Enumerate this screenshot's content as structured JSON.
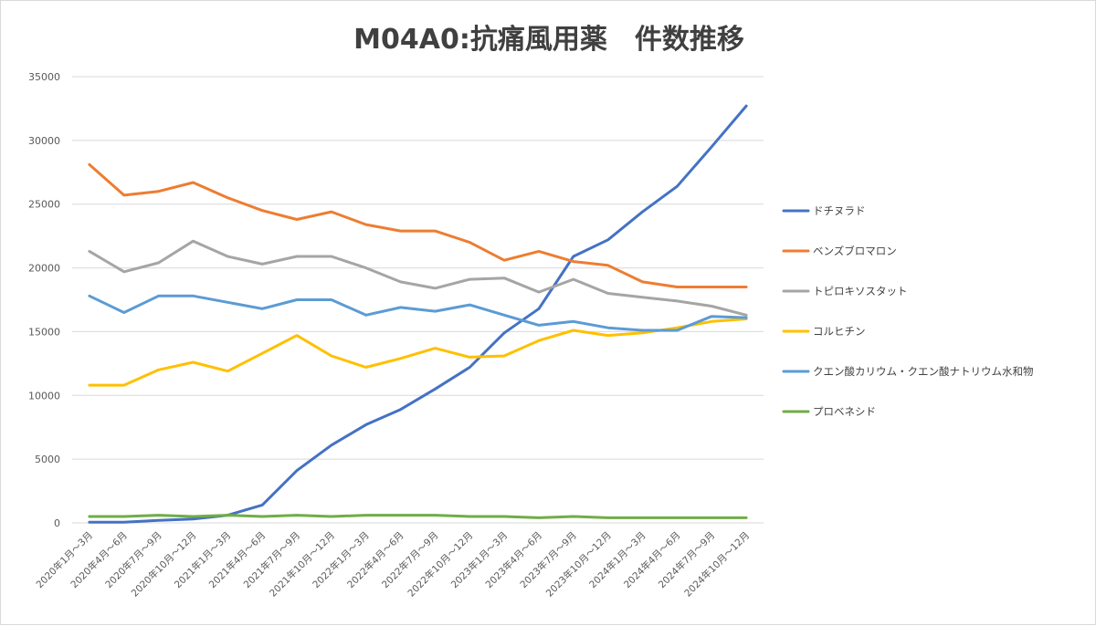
{
  "chart_data": {
    "type": "line",
    "title": "M04A0:抗痛風用薬　件数推移",
    "xlabel": "",
    "ylabel": "",
    "ylim": [
      0,
      35000
    ],
    "yticks": [
      0,
      5000,
      10000,
      15000,
      20000,
      25000,
      30000,
      35000
    ],
    "grid": true,
    "legend_position": "right",
    "categories": [
      "2020年1月～3月",
      "2020年4月～6月",
      "2020年7月～9月",
      "2020年10月～12月",
      "2021年1月～3月",
      "2021年4月～6月",
      "2021年7月～9月",
      "2021年10月～12月",
      "2022年1月～3月",
      "2022年4月～6月",
      "2022年7月～9月",
      "2022年10月～12月",
      "2023年1月～3月",
      "2023年4月～6月",
      "2023年7月～9月",
      "2023年10月～12月",
      "2024年1月～3月",
      "2024年4月～6月",
      "2024年7月～9月",
      "2024年10月～12月"
    ],
    "series": [
      {
        "name": "ドチヌラド",
        "color": "#4472c4",
        "values": [
          50,
          50,
          200,
          300,
          600,
          1400,
          4100,
          6100,
          7700,
          8900,
          10500,
          12200,
          14900,
          16800,
          20900,
          22200,
          24400,
          26400,
          29500,
          32700
        ]
      },
      {
        "name": "ベンズブロマロン",
        "color": "#ed7d31",
        "values": [
          28100,
          25700,
          26000,
          26700,
          25500,
          24500,
          23800,
          24400,
          23400,
          22900,
          22900,
          22000,
          20600,
          21300,
          20500,
          20200,
          18900,
          18500,
          18500,
          18500
        ]
      },
      {
        "name": "トピロキソスタット",
        "color": "#a5a5a5",
        "values": [
          21300,
          19700,
          20400,
          22100,
          20900,
          20300,
          20900,
          20900,
          20000,
          18900,
          18400,
          19100,
          19200,
          18100,
          19100,
          18000,
          17700,
          17400,
          17000,
          16300
        ]
      },
      {
        "name": "コルヒチン",
        "color": "#ffc000",
        "values": [
          10800,
          10800,
          12000,
          12600,
          11900,
          13300,
          14700,
          13100,
          12200,
          12900,
          13700,
          13000,
          13100,
          14300,
          15100,
          14700,
          14900,
          15300,
          15800,
          16000
        ]
      },
      {
        "name": "クエン酸カリウム・クエン酸ナトリウム水和物",
        "color": "#5b9bd5",
        "values": [
          17800,
          16500,
          17800,
          17800,
          17300,
          16800,
          17500,
          17500,
          16300,
          16900,
          16600,
          17100,
          16300,
          15500,
          15800,
          15300,
          15100,
          15100,
          16200,
          16100
        ]
      },
      {
        "name": "プロベネシド",
        "color": "#70ad47",
        "values": [
          500,
          500,
          600,
          500,
          600,
          500,
          600,
          500,
          600,
          600,
          600,
          500,
          500,
          400,
          500,
          400,
          400,
          400,
          400,
          400
        ]
      }
    ]
  }
}
